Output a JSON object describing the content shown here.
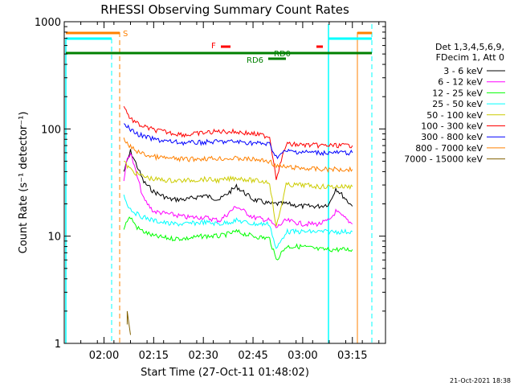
{
  "chart_data": {
    "type": "line",
    "title": "RHESSI Observing Summary Count Rates",
    "xlabel": "Start Time (27-Oct-11 01:48:02)",
    "ylabel": "Count Rate (s⁻¹ detector⁻¹)",
    "yscale": "log",
    "ylim": [
      1,
      1000
    ],
    "xlim": [
      "01:48",
      "03:25"
    ],
    "x_ticks": [
      "02:00",
      "02:15",
      "02:30",
      "02:45",
      "03:00",
      "03:15"
    ],
    "y_ticks": [
      "1",
      "10",
      "100",
      "1000"
    ],
    "grid": false,
    "legend_position": "right",
    "legend_header": [
      "Det 1,3,4,5,6,9,",
      "FDecim 1, Att 0"
    ],
    "series": [
      {
        "name": "3 - 6 keV",
        "color": "#000000",
        "x": [
          "02:06",
          "02:07",
          "02:08",
          "02:10",
          "02:12",
          "02:15",
          "02:20",
          "02:25",
          "02:30",
          "02:35",
          "02:40",
          "02:45",
          "02:50",
          "02:52",
          "02:55",
          "03:00",
          "03:05",
          "03:08",
          "03:10",
          "03:15"
        ],
        "values": [
          40,
          50,
          62,
          45,
          32,
          26,
          22,
          22,
          24,
          22,
          29,
          22,
          20,
          20,
          20,
          19,
          19,
          20,
          28,
          19
        ]
      },
      {
        "name": "6 - 12 keV",
        "color": "#ff00ff",
        "x": [
          "02:06",
          "02:07",
          "02:08",
          "02:10",
          "02:12",
          "02:15",
          "02:20",
          "02:25",
          "02:30",
          "02:35",
          "02:40",
          "02:45",
          "02:50",
          "02:52",
          "02:55",
          "03:00",
          "03:05",
          "03:08",
          "03:10",
          "03:15"
        ],
        "values": [
          34,
          52,
          60,
          36,
          22,
          17,
          16,
          15,
          15,
          14,
          19,
          15,
          14,
          12,
          14,
          13,
          13,
          14,
          17,
          13
        ]
      },
      {
        "name": "12 - 25 keV",
        "color": "#00ff00",
        "x": [
          "02:06",
          "02:07",
          "02:08",
          "02:10",
          "02:12",
          "02:15",
          "02:20",
          "02:25",
          "02:30",
          "02:35",
          "02:40",
          "02:45",
          "02:50",
          "02:52",
          "02:55",
          "03:00",
          "03:05",
          "03:08",
          "03:10",
          "03:15"
        ],
        "values": [
          12,
          14,
          15,
          12,
          11,
          10,
          9.5,
          9.5,
          10,
          10,
          11,
          10,
          9.5,
          6,
          8,
          8,
          7.5,
          7.5,
          7.5,
          7.5
        ]
      },
      {
        "name": "25 - 50 keV",
        "color": "#00ffff",
        "x": [
          "02:06",
          "02:07",
          "02:08",
          "02:10",
          "02:12",
          "02:15",
          "02:20",
          "02:25",
          "02:30",
          "02:35",
          "02:40",
          "02:45",
          "02:50",
          "02:52",
          "02:55",
          "03:00",
          "03:05",
          "03:08",
          "03:10",
          "03:15"
        ],
        "values": [
          24,
          20,
          18,
          16,
          15,
          14,
          13,
          13,
          13.5,
          13,
          14,
          13,
          13,
          7.5,
          11,
          11,
          11,
          11,
          11,
          11
        ]
      },
      {
        "name": "50 - 100 keV",
        "color": "#cccc00",
        "x": [
          "02:06",
          "02:07",
          "02:08",
          "02:10",
          "02:12",
          "02:15",
          "02:20",
          "02:25",
          "02:30",
          "02:35",
          "02:40",
          "02:45",
          "02:50",
          "02:52",
          "02:55",
          "03:00",
          "03:05",
          "03:08",
          "03:10",
          "03:15"
        ],
        "values": [
          50,
          45,
          42,
          38,
          36,
          34,
          33,
          33,
          34,
          33,
          35,
          33,
          32,
          12,
          30,
          30,
          29,
          29,
          29,
          29
        ]
      },
      {
        "name": "100 - 300 keV",
        "color": "#ff0000",
        "x": [
          "02:06",
          "02:07",
          "02:08",
          "02:10",
          "02:12",
          "02:15",
          "02:20",
          "02:25",
          "02:30",
          "02:35",
          "02:40",
          "02:45",
          "02:50",
          "02:52",
          "02:55",
          "03:00",
          "03:05",
          "03:08",
          "03:10",
          "03:15"
        ],
        "values": [
          170,
          140,
          125,
          112,
          105,
          98,
          92,
          88,
          92,
          95,
          94,
          90,
          85,
          35,
          72,
          71,
          70,
          70,
          70,
          70
        ]
      },
      {
        "name": "300 - 800 keV",
        "color": "#0000ff",
        "x": [
          "02:06",
          "02:07",
          "02:08",
          "02:10",
          "02:12",
          "02:15",
          "02:20",
          "02:25",
          "02:30",
          "02:35",
          "02:40",
          "02:45",
          "02:50",
          "02:52",
          "02:55",
          "03:00",
          "03:05",
          "03:08",
          "03:10",
          "03:15"
        ],
        "values": [
          118,
          105,
          98,
          90,
          85,
          80,
          76,
          74,
          75,
          76,
          76,
          74,
          72,
          55,
          62,
          61,
          60,
          60,
          60,
          60
        ]
      },
      {
        "name": "800 - 7000 keV",
        "color": "#ff8000",
        "x": [
          "02:06",
          "02:07",
          "02:08",
          "02:10",
          "02:12",
          "02:15",
          "02:20",
          "02:25",
          "02:30",
          "02:35",
          "02:40",
          "02:45",
          "02:50",
          "02:52",
          "02:55",
          "03:00",
          "03:05",
          "03:08",
          "03:10",
          "03:15"
        ],
        "values": [
          80,
          72,
          68,
          62,
          58,
          55,
          53,
          52,
          53,
          53,
          53,
          52,
          50,
          45,
          44,
          43,
          42,
          42,
          42,
          42
        ]
      },
      {
        "name": "7000 - 15000 keV",
        "color": "#806000",
        "x": [
          "02:07",
          "02:07",
          "02:08"
        ],
        "values": [
          1.5,
          2,
          1.2
        ]
      }
    ],
    "flags": [
      {
        "label": "S",
        "color": "#ff8000"
      },
      {
        "label": "F",
        "color": "#ff0000"
      },
      {
        "label": "RD0",
        "color": "#008000"
      },
      {
        "label": "RD6",
        "color": "#008000"
      }
    ],
    "footer_date": "21-Oct-2021 18:38"
  }
}
